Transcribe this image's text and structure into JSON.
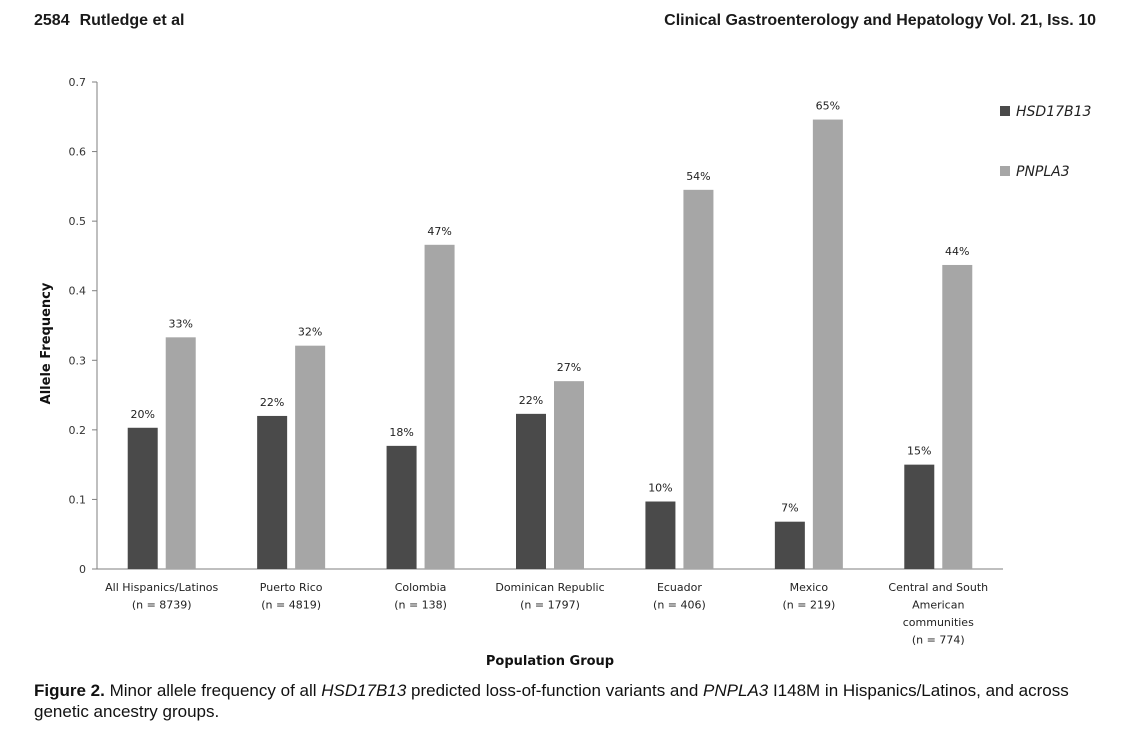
{
  "header": {
    "page_number": "2584",
    "authors": "Rutledge et al",
    "journal": "Clinical Gastroenterology and Hepatology Vol. 21, Iss. 10"
  },
  "caption": {
    "label": "Figure 2.",
    "t1": " Minor allele frequency of all ",
    "gene1": "HSD17B13",
    "t2": " predicted loss-of-function variants and ",
    "gene2": "PNPLA3",
    "t3": " I148M in Hispanics/Latinos, and across genetic ancestry groups."
  },
  "colors": {
    "HSD17B13": "#4a4a4a",
    "PNPLA3": "#a6a6a6",
    "axis": "#7f7f7f"
  },
  "chart_data": {
    "type": "bar",
    "title": "",
    "xlabel": "Population Group",
    "ylabel": "Allele Frequency",
    "ylim": [
      0,
      0.7
    ],
    "yticks": [
      "0",
      "0.1",
      "0.2",
      "0.3",
      "0.4",
      "0.5",
      "0.6",
      "0.7"
    ],
    "grid": false,
    "legend_position": "top-right",
    "categories": [
      [
        "All Hispanics/Latinos",
        "(n = 8739)"
      ],
      [
        "Puerto Rico",
        "(n = 4819)"
      ],
      [
        "Colombia",
        "(n = 138)"
      ],
      [
        "Dominican Republic",
        "(n = 1797)"
      ],
      [
        "Ecuador",
        "(n = 406)"
      ],
      [
        "Mexico",
        "(n = 219)"
      ],
      [
        "Central and South",
        "American",
        "communities",
        "(n = 774)"
      ]
    ],
    "series": [
      {
        "name": "HSD17B13",
        "values": [
          0.203,
          0.22,
          0.177,
          0.223,
          0.097,
          0.068,
          0.15
        ],
        "labels": [
          "20%",
          "22%",
          "18%",
          "22%",
          "10%",
          "7%",
          "15%"
        ]
      },
      {
        "name": "PNPLA3",
        "values": [
          0.333,
          0.321,
          0.466,
          0.27,
          0.545,
          0.646,
          0.437
        ],
        "labels": [
          "33%",
          "32%",
          "47%",
          "27%",
          "54%",
          "65%",
          "44%"
        ]
      }
    ]
  }
}
